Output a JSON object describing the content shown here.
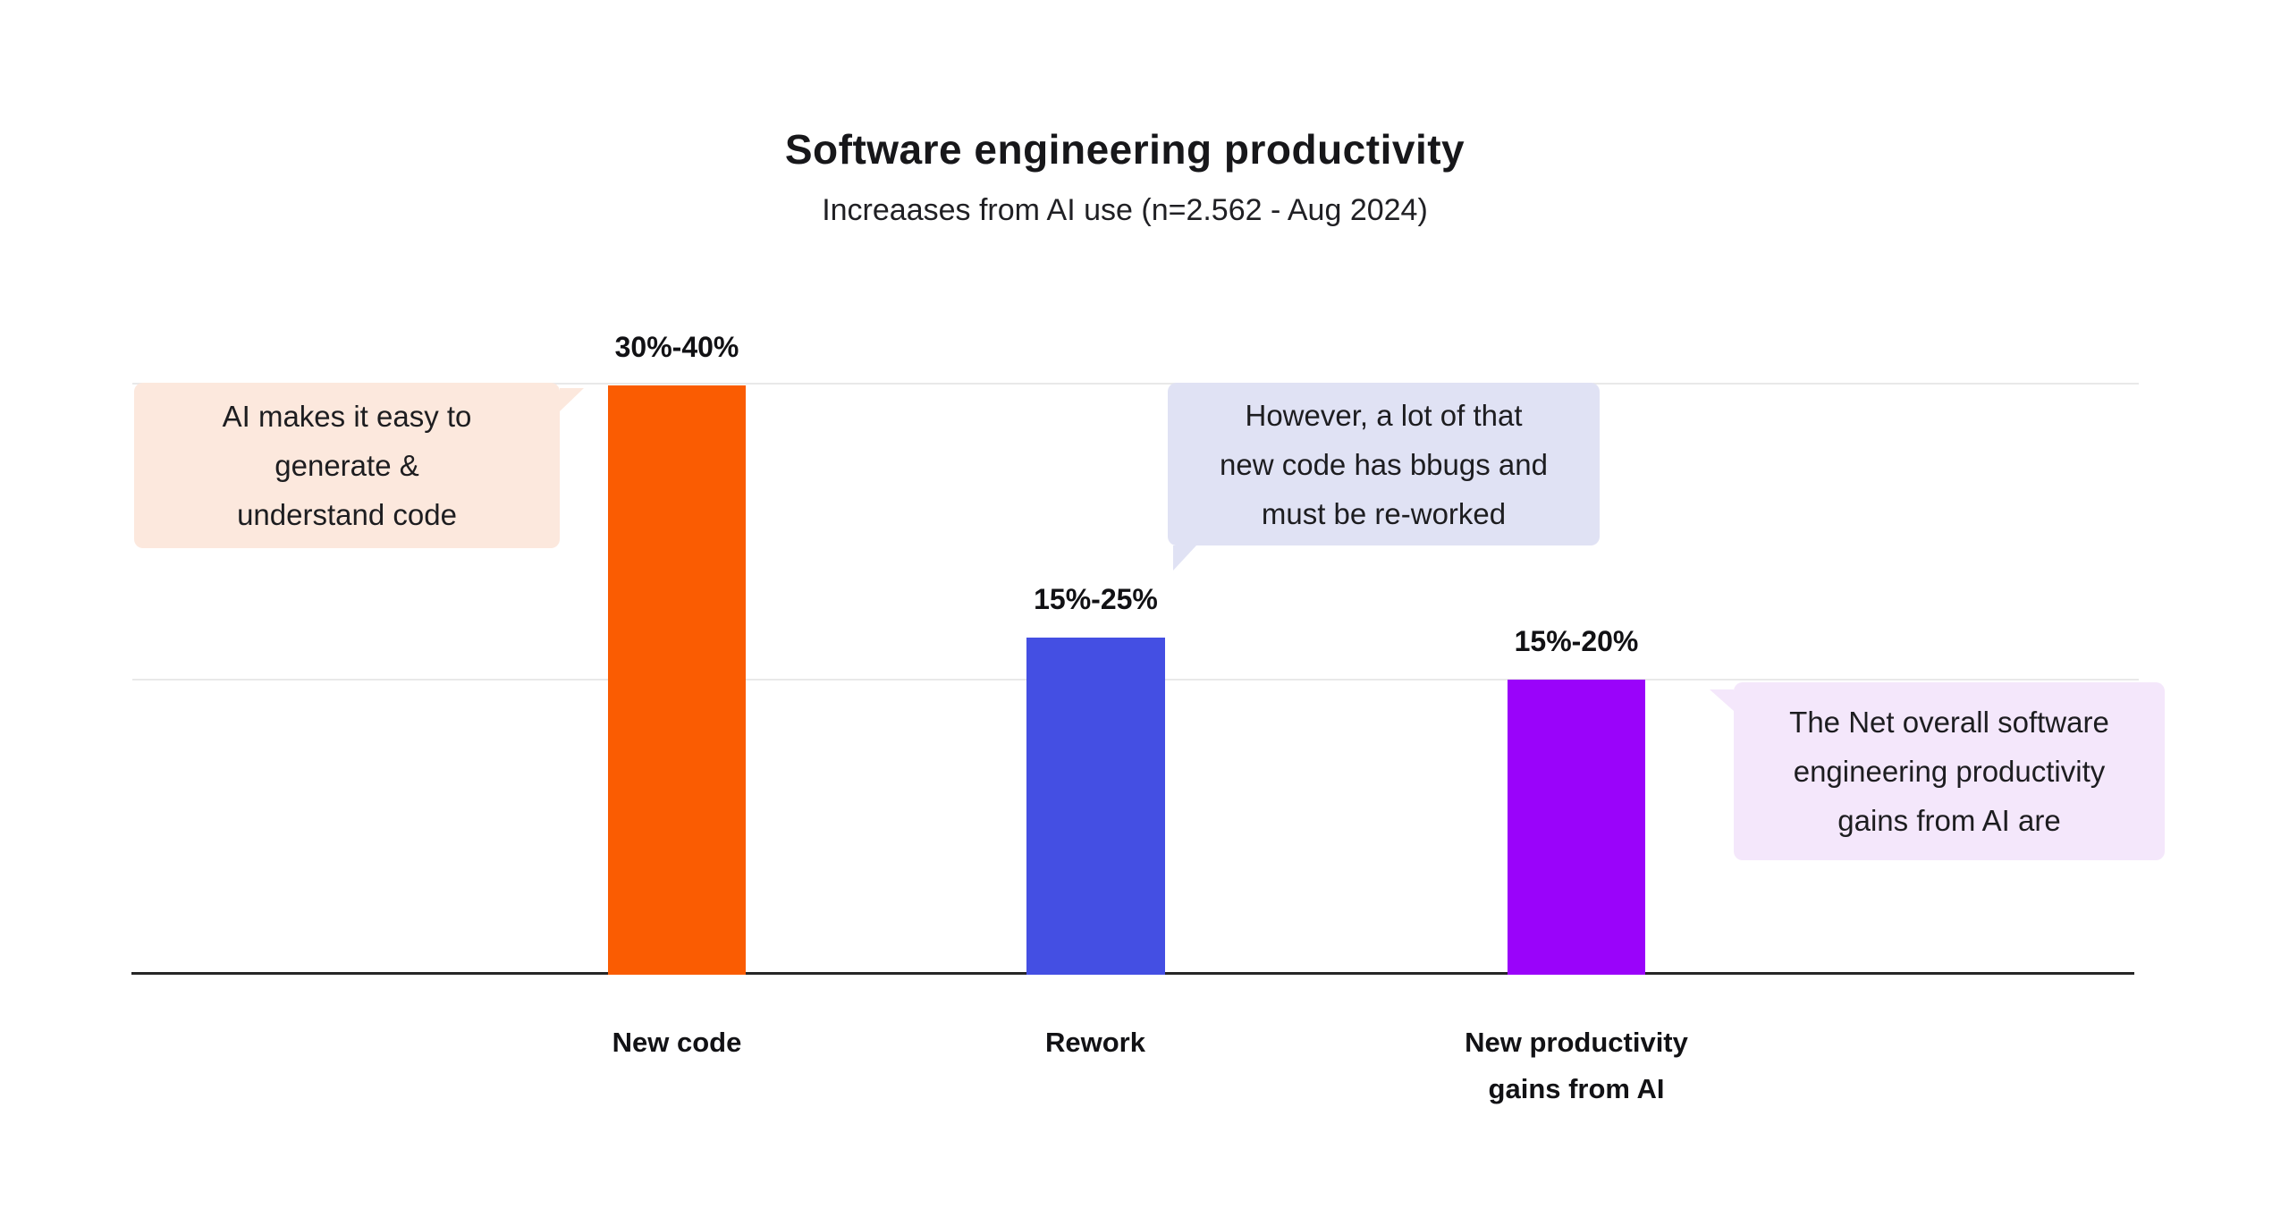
{
  "header": {
    "title": "Software engineering productivity",
    "subtitle": "Increaases from AI use (n=2.562 - Aug 2024)"
  },
  "chart_data": {
    "type": "bar",
    "title": "Software engineering productivity",
    "subtitle": "Increaases from AI use (n=2.562 - Aug 2024)",
    "unit": "percent",
    "ylim": [
      0,
      38
    ],
    "gridline_values": [
      17.5,
      35
    ],
    "grid": true,
    "legend": false,
    "categories": [
      "New code",
      "Rework",
      "New productivity gains from AI"
    ],
    "bars": [
      {
        "category": "New code",
        "category_lines": [
          "New code"
        ],
        "range_label": "30%-40%",
        "range_low_pct": 30,
        "range_high_pct": 40,
        "plotted_midpoint_pct": 35,
        "color": "#fa5c02"
      },
      {
        "category": "Rework",
        "category_lines": [
          "Rework"
        ],
        "range_label": "15%-25%",
        "range_low_pct": 15,
        "range_high_pct": 25,
        "plotted_midpoint_pct": 20,
        "color": "#444fe3"
      },
      {
        "category": "New productivity gains from AI",
        "category_lines": [
          "New productivity",
          "gains from AI"
        ],
        "range_label": "15%-20%",
        "range_low_pct": 15,
        "range_high_pct": 20,
        "plotted_midpoint_pct": 17.5,
        "color": "#9a03fa"
      }
    ]
  },
  "annotations": [
    {
      "text": "AI makes it easy to generate & understand code",
      "lines": [
        "AI makes it easy to",
        "generate &",
        "understand code"
      ],
      "bg_color": "#fce8dd",
      "tail": "right-top"
    },
    {
      "text": "However, a lot of that new code has bbugs and must be re-worked",
      "lines": [
        "However, a lot of that",
        "new code has bbugs and",
        "must be re-worked"
      ],
      "bg_color": "#e0e2f4",
      "tail": "bottom-left"
    },
    {
      "text": "The Net overall software engineering productivity gains from AI are",
      "lines": [
        "The Net overall software",
        "engineering productivity",
        "gains from AI are"
      ],
      "bg_color": "#f4e7fb",
      "tail": "left-top"
    }
  ]
}
